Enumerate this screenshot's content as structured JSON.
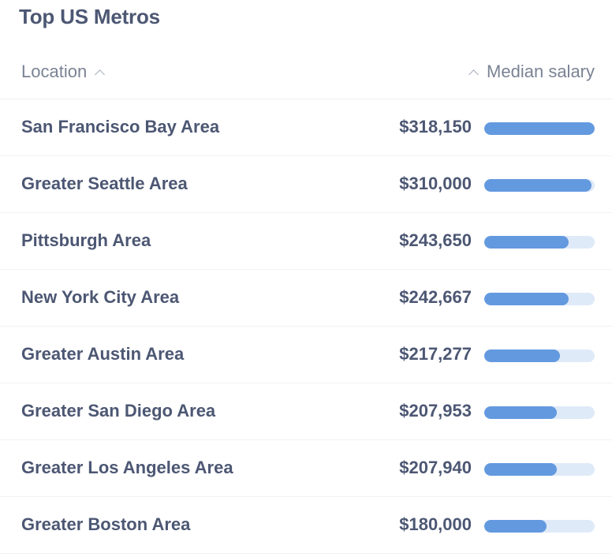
{
  "title": "Top US Metros",
  "header": {
    "location_label": "Location",
    "salary_label": "Median salary"
  },
  "colors": {
    "bar_fill": "#6399df",
    "bar_track": "#dfeaf8",
    "text": "#4c5773"
  },
  "rows": [
    {
      "location": "San Francisco Bay Area",
      "salary": "$318,150",
      "fraction": 1.0
    },
    {
      "location": "Greater Seattle Area",
      "salary": "$310,000",
      "fraction": 0.974
    },
    {
      "location": "Pittsburgh Area",
      "salary": "$243,650",
      "fraction": 0.766
    },
    {
      "location": "New York City Area",
      "salary": "$242,667",
      "fraction": 0.763
    },
    {
      "location": "Greater Austin Area",
      "salary": "$217,277",
      "fraction": 0.683
    },
    {
      "location": "Greater San Diego Area",
      "salary": "$207,953",
      "fraction": 0.654
    },
    {
      "location": "Greater Los Angeles Area",
      "salary": "$207,940",
      "fraction": 0.654
    },
    {
      "location": "Greater Boston Area",
      "salary": "$180,000",
      "fraction": 0.566
    }
  ]
}
